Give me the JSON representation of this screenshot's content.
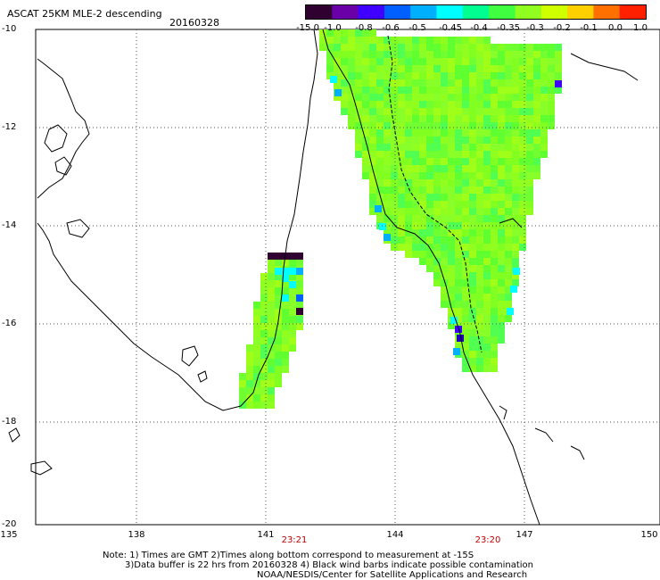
{
  "title": "ASCAT 25KM MLE-2 descending",
  "date": "20160328",
  "colorbar": {
    "labels": [
      "-15.0",
      "-1.0",
      "-0.8",
      "-0.6",
      "-0.5",
      "-0.45",
      "-0.4",
      "-0.35",
      "-0.3",
      "-0.2",
      "-0.1",
      "0.0",
      "1.0"
    ],
    "colors": [
      "#300030",
      "#6a00a8",
      "#4000ff",
      "#0060ff",
      "#00b0ff",
      "#00ffff",
      "#00ff90",
      "#40ff40",
      "#90ff20",
      "#d0ff00",
      "#ffd000",
      "#ff7000",
      "#ff2000"
    ]
  },
  "axes": {
    "lat_labels": [
      "-10",
      "-12",
      "-14",
      "-16",
      "-18",
      "-20"
    ],
    "lon_labels": [
      "135",
      "138",
      "141",
      "144",
      "147",
      "150"
    ]
  },
  "pass_times": [
    "23:21",
    "23:20"
  ],
  "notes": [
    "Note: 1) Times are GMT 2)Times along bottom correspond to measurement at -15S",
    "3)Data buffer is 22 hrs from 20160328 4) Black wind barbs indicate possible contamination",
    "NOAA/NESDIS/Center for Satellite Applications and Research"
  ]
}
